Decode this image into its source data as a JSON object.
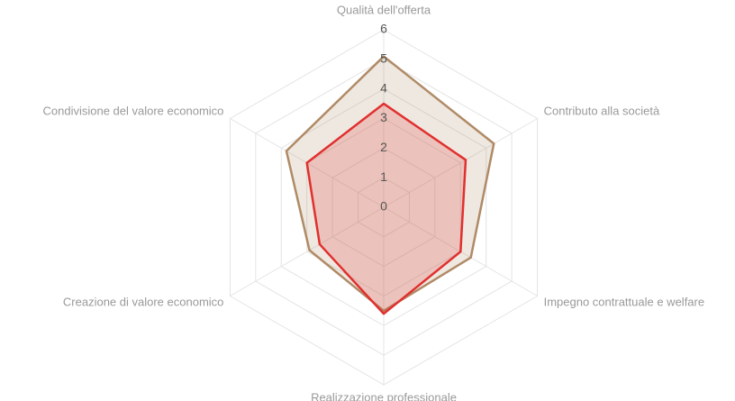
{
  "chart_data": {
    "type": "radar",
    "categories": [
      "Qualità dell'offerta",
      "Contributo alla società",
      "Impegno contrattuale e welfare",
      "Realizzazione professionale",
      "Creazione di valore economico",
      "Condivisione del valore economico"
    ],
    "series": [
      {
        "color": "#b08a66",
        "values": [
          5.1,
          4.3,
          3.4,
          3.5,
          2.9,
          3.8
        ]
      },
      {
        "color": "#e0302f",
        "values": [
          3.5,
          3.2,
          3.0,
          3.6,
          2.5,
          3.0
        ]
      }
    ],
    "ylim": [
      0,
      6
    ],
    "yticks": [
      0,
      1,
      2,
      3,
      4,
      5,
      6
    ],
    "grid": true
  }
}
